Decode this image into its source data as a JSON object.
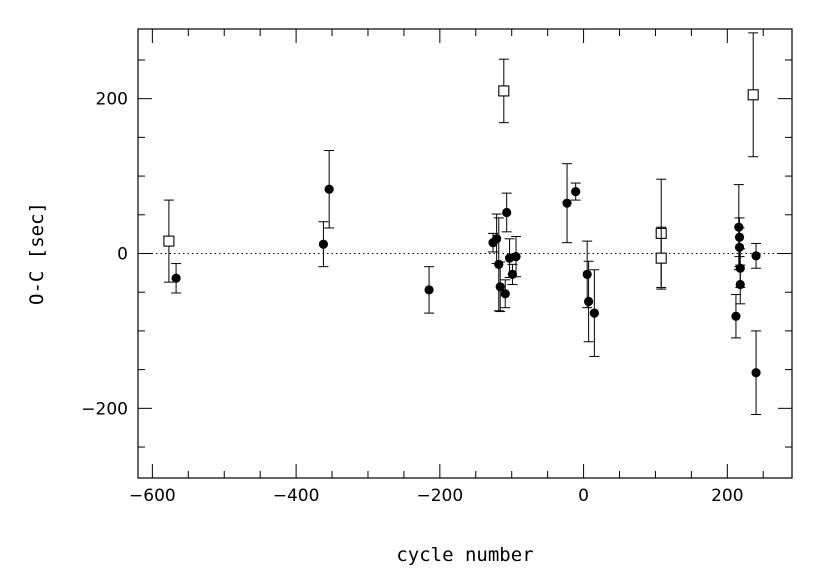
{
  "chart_data": {
    "type": "scatter",
    "title": "",
    "xlabel": "cycle number",
    "ylabel": "O-C [sec]",
    "xlim": [
      -620,
      290
    ],
    "ylim": [
      -290,
      290
    ],
    "x_major_ticks": [
      -600,
      -400,
      -200,
      0,
      200
    ],
    "x_tick_labels": [
      "−600",
      "−400",
      "−200",
      "0",
      "200"
    ],
    "x_minor_step": 50,
    "y_major_ticks": [
      -200,
      0,
      200
    ],
    "y_tick_labels": [
      "−200",
      "0",
      "200"
    ],
    "y_minor_step": 50,
    "reference_line": {
      "y": 0,
      "style": "dotted"
    },
    "grid": false,
    "series": [
      {
        "marker": "filled-circle",
        "points": [
          {
            "x": -567,
            "y": -32,
            "err": 19
          },
          {
            "x": -362,
            "y": 12,
            "err": 29
          },
          {
            "x": -354,
            "y": 83,
            "err": 50
          },
          {
            "x": -215,
            "y": -47,
            "err": 30
          },
          {
            "x": -126,
            "y": 14,
            "err": 12
          },
          {
            "x": -121,
            "y": 19,
            "err": 32
          },
          {
            "x": -118,
            "y": -14,
            "err": 60
          },
          {
            "x": -116,
            "y": -43,
            "err": 32
          },
          {
            "x": -109,
            "y": -52,
            "err": 18
          },
          {
            "x": -107,
            "y": 53,
            "err": 25
          },
          {
            "x": -103,
            "y": -6,
            "err": 25
          },
          {
            "x": -99,
            "y": -27,
            "err": 13
          },
          {
            "x": -94,
            "y": -4,
            "err": 26
          },
          {
            "x": -23,
            "y": 65,
            "err": 51
          },
          {
            "x": -11,
            "y": 80,
            "err": 11
          },
          {
            "x": 5,
            "y": -27,
            "err": 43
          },
          {
            "x": 7,
            "y": -62,
            "err": 52
          },
          {
            "x": 15,
            "y": -77,
            "err": 56
          },
          {
            "x": 212,
            "y": -81,
            "err": 28
          },
          {
            "x": 216,
            "y": 34,
            "err": 55
          },
          {
            "x": 217,
            "y": 21,
            "err": 25
          },
          {
            "x": 217,
            "y": 8,
            "err": 25
          },
          {
            "x": 218,
            "y": -19,
            "err": 25
          },
          {
            "x": 218,
            "y": -40,
            "err": 25
          },
          {
            "x": 240,
            "y": -3,
            "err": 16
          },
          {
            "x": 240,
            "y": -154,
            "err": 54
          }
        ]
      },
      {
        "marker": "open-square",
        "points": [
          {
            "x": -577,
            "y": 16,
            "err": 53
          },
          {
            "x": -111,
            "y": 210,
            "err": 41
          },
          {
            "x": 108,
            "y": 26,
            "err": 70
          },
          {
            "x": 108,
            "y": -6,
            "err": 40
          },
          {
            "x": 236,
            "y": 205,
            "err": 80
          }
        ]
      }
    ]
  }
}
